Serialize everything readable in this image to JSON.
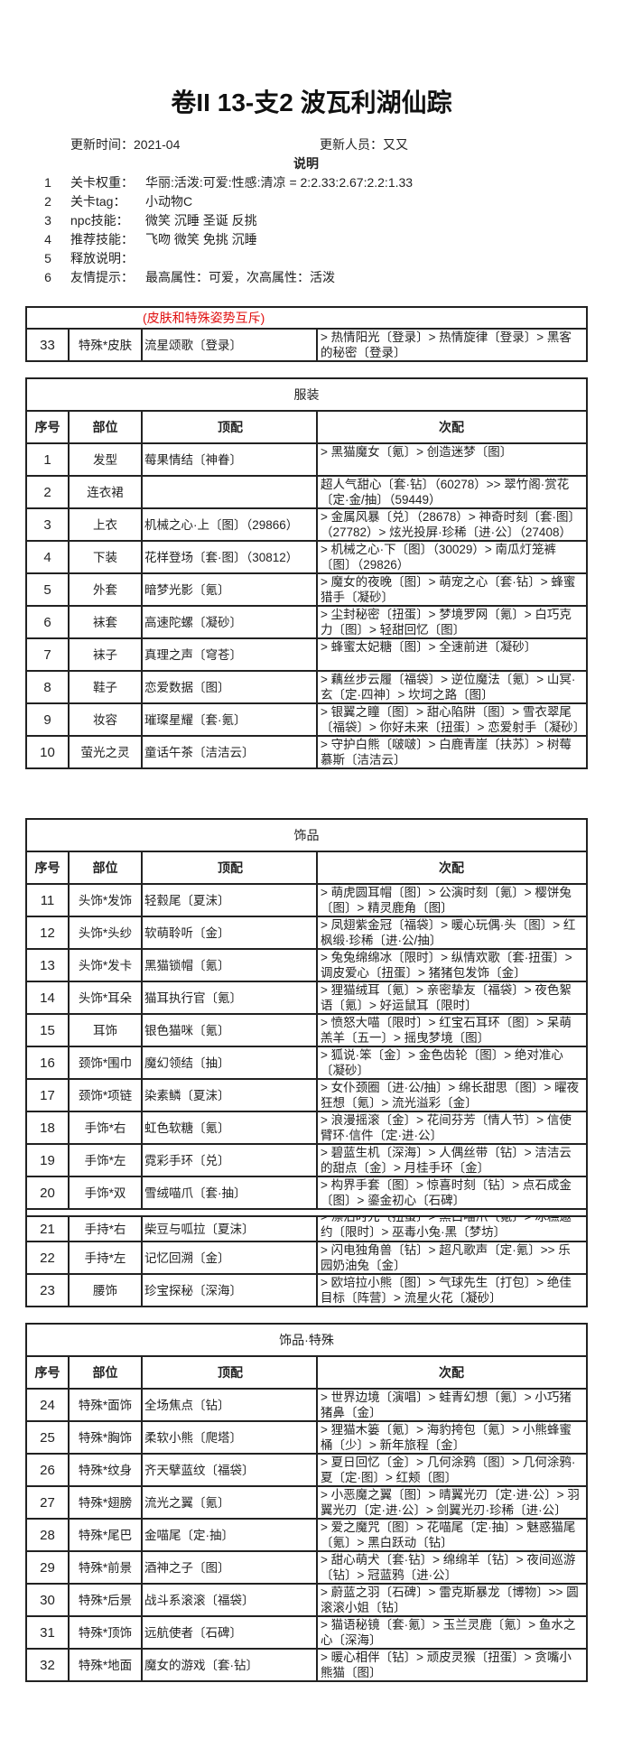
{
  "title": "卷II 13-支2 波瓦利湖仙踪",
  "meta": {
    "update_time": "更新时间：2021-04",
    "updater": "更新人员：又又"
  },
  "intro": {
    "heading": "说明",
    "lines": [
      {
        "num": "1",
        "label": "关卡权重：",
        "value": "华丽:活泼:可爱:性感:清凉 = 2:2.33:2.67:2.2:1.33"
      },
      {
        "num": "2",
        "label": "关卡tag：",
        "value": "小动物C"
      },
      {
        "num": "3",
        "label": "npc技能：",
        "value": "微笑 沉睡 圣诞 反挑"
      },
      {
        "num": "4",
        "label": "推荐技能：",
        "value": "飞吻 微笑 免挑 沉睡"
      },
      {
        "num": "5",
        "label": "释放说明：",
        "value": ""
      },
      {
        "num": "6",
        "label": "友情提示：",
        "value": "最高属性：可爱，次高属性：活泼"
      }
    ]
  },
  "skin": {
    "note": "(皮肤和特殊姿势互斥)",
    "rows": [
      [
        "33",
        "特殊*皮肤",
        "流星颂歌〔登录〕",
        "> 热情阳光〔登录〕> 热情旋律〔登录〕> 黑客的秘密〔登录〕"
      ]
    ]
  },
  "headers": [
    "序号",
    "部位",
    "顶配",
    "次配"
  ],
  "tables": [
    {
      "title": "服装",
      "rows": [
        [
          "1",
          "发型",
          "莓果情结〔神眷〕",
          "> 黑猫魔女〔氪〕> 创造迷梦〔图〕"
        ],
        [
          "2",
          "连衣裙",
          "",
          "超人气甜心〔套·钻〕（60278）>> 翠竹阁·赏花〔定·金/抽〕（59449）"
        ],
        [
          "3",
          "上衣",
          "机械之心·上〔图〕（29866）",
          "> 金属风暴〔兑〕（28678）> 神奇时刻〔套·图〕（27782）> 炫光投屏·珍稀〔进·公〕（27408）"
        ],
        [
          "4",
          "下装",
          "花样登场〔套·图〕（30812）",
          "> 机械之心·下〔图〕（30029）> 南瓜灯笼裤〔图〕（29826）"
        ],
        [
          "5",
          "外套",
          "暗梦光影〔氪〕",
          "> 魔女的夜晚〔图〕> 萌宠之心〔套·钻〕> 蜂蜜猎手〔凝砂〕"
        ],
        [
          "6",
          "袜套",
          "高速陀螺〔凝砂〕",
          "> 尘封秘密〔扭蛋〕> 梦境罗网〔氪〕> 白巧克力〔图〕> 轻甜回忆〔图〕"
        ],
        [
          "7",
          "袜子",
          "真理之声〔穹苍〕",
          "> 蜂蜜太妃糖〔图〕> 全速前进〔凝砂〕"
        ],
        [
          "8",
          "鞋子",
          "恋爱数据〔图〕",
          "> 藕丝步云履〔福袋〕> 逆位魔法〔氪〕> 山冥·玄〔定·四神〕> 坎坷之路〔图〕"
        ],
        [
          "9",
          "妆容",
          "璀璨星耀〔套·氪〕",
          "> 银翼之瞳〔图〕> 甜心陷阱〔图〕> 雪衣翠尾〔福袋〕> 你好未来〔扭蛋〕> 恋爱射手〔凝砂〕"
        ],
        [
          "10",
          "萤光之灵",
          "童话午茶〔洁洁云〕",
          "> 守护白熊〔啵啵〕> 白鹿青崖〔扶苏〕> 树莓慕斯〔洁洁云〕"
        ]
      ]
    },
    {
      "title": "饰品",
      "rows": [
        [
          "11",
          "头饰*发饰",
          "轻縠尾〔夏沫〕",
          "> 萌虎圆耳帽〔图〕> 公演时刻〔氪〕> 樱饼兔〔图〕> 精灵鹿角〔图〕"
        ],
        [
          "12",
          "头饰*头纱",
          "软萌聆听〔金〕",
          "> 凤翅紫金冠〔福袋〕> 暖心玩偶·头〔图〕> 红枫缎·珍稀〔进·公/抽〕"
        ],
        [
          "13",
          "头饰*发卡",
          "黑猫锁帽〔氪〕",
          "> 兔兔绵绵冰〔限时〕> 纵情欢歌〔套·扭蛋〕> 调皮爱心〔扭蛋〕> 猪猪包发饰〔金〕"
        ],
        [
          "14",
          "头饰*耳朵",
          "猫耳执行官〔氪〕",
          "> 狸猫绒耳〔氪〕> 亲密挚友〔福袋〕> 夜色絮语〔氪〕> 好运鼠耳〔限时〕"
        ],
        [
          "15",
          "耳饰",
          "银色猫咪〔氪〕",
          "> 愤怒大喵〔限时〕> 红宝石耳环〔图〕> 呆萌羔羊〔五一〕> 摇曳梦境〔图〕"
        ],
        [
          "16",
          "颈饰*围巾",
          "魔幻领结〔抽〕",
          "> 狐说·笨〔金〕> 金色齿轮〔图〕> 绝对准心〔凝砂〕"
        ],
        [
          "17",
          "颈饰*项链",
          "染素鳞〔夏沫〕",
          "> 女仆颈圈〔进·公/抽〕> 绵长甜思〔图〕> 曜夜狂想〔氪〕> 流光溢彩〔金〕"
        ],
        [
          "18",
          "手饰*右",
          "虹色软糖〔氪〕",
          "> 浪漫摇滚〔金〕> 花间芬芳〔情人节〕> 信使臂环·信件〔定·进·公〕"
        ],
        [
          "19",
          "手饰*左",
          "霓彩手环〔兑〕",
          "> 碧蓝生机〔深海〕> 人偶丝带〔钻〕> 洁洁云的甜点〔金〕> 月桂手环〔金〕"
        ],
        [
          "20",
          "手饰*双",
          "雪绒喵爪〔套·抽〕",
          "> 构界手套〔图〕> 惊喜时刻〔钻〕> 点石成金〔图〕> 鎏金初心〔石碑〕"
        ],
        [
          "21",
          "手持*右",
          "柴豆与呱拉〔夏沫〕",
          "> 漂泊时光〔扭蛋〕> 黑白喵爪〔氪〕> 冰糕邀约〔限时〕> 巫毒小兔·黑〔梦坊〕"
        ],
        [
          "22",
          "手持*左",
          "记忆回溯〔金〕",
          "> 闪电独角兽〔钻〕> 超凡歌声〔定·氪〕>> 乐园奶油兔〔金〕"
        ],
        [
          "23",
          "腰饰",
          "珍宝探秘〔深海〕",
          "> 欧培拉小熊〔图〕> 气球先生〔打包〕> 绝佳目标〔阵营〕> 流星火花〔凝砂〕"
        ]
      ]
    },
    {
      "title": "饰品·特殊",
      "rows": [
        [
          "24",
          "特殊*面饰",
          "全场焦点〔钻〕",
          "> 世界边境〔演唱〕> 蛙青幻想〔氪〕> 小巧猪猪鼻〔金〕"
        ],
        [
          "25",
          "特殊*胸饰",
          "柔软小熊〔爬塔〕",
          "> 狸猫木篓〔氪〕> 海豹挎包〔氪〕> 小熊蜂蜜桶〔少〕> 新年旅程〔金〕"
        ],
        [
          "26",
          "特殊*纹身",
          "齐天擘蓝纹〔福袋〕",
          "> 夏日回忆〔金〕> 几何涂鸦〔图〕> 几何涂鸦·夏〔定·图〕> 红颊〔图〕"
        ],
        [
          "27",
          "特殊*翅膀",
          "流光之翼〔氪〕",
          "> 小恶魔之翼〔图〕> 晴翼光刃〔定·进·公〕> 羽翼光刃〔定·进·公〕> 剑翼光刃·珍稀〔进·公〕"
        ],
        [
          "28",
          "特殊*尾巴",
          "金喵尾〔定·抽〕",
          "> 爱之魔咒〔图〕> 花喵尾〔定·抽〕> 魅惑猫尾〔氪〕> 黑白跃动〔钻〕"
        ],
        [
          "29",
          "特殊*前景",
          "酒神之子〔图〕",
          "> 甜心萌犬〔套·钻〕> 绵绵羊〔钻〕> 夜间巡游〔钻〕> 冠蓝鸦〔进·公〕"
        ],
        [
          "30",
          "特殊*后景",
          "战斗系滚滚〔福袋〕",
          "> 蔚蓝之羽〔石碑〕> 雷克斯暴龙〔博物〕>> 圆滚滚小姐〔钻〕"
        ],
        [
          "31",
          "特殊*顶饰",
          "远航使者〔石碑〕",
          "> 猫语秘镜〔套·氪〕> 玉兰灵鹿〔氪〕> 鱼水之心〔深海〕"
        ],
        [
          "32",
          "特殊*地面",
          "魔女的游戏〔套·钻〕",
          "> 暖心相伴〔钻〕> 顽皮灵猴〔扭蛋〕> 贪嘴小熊猫〔图〕"
        ]
      ]
    }
  ]
}
